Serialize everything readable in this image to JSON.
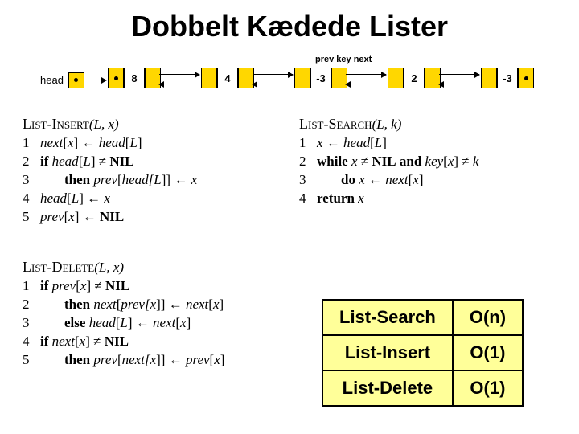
{
  "title": "Dobbelt Kædede Lister",
  "diagram": {
    "col_labels": "prev  key  next",
    "head_label": "head",
    "node_values": [
      "8",
      "4",
      "-3",
      "2",
      "-3"
    ],
    "node_bg": "#ffd700",
    "key_bg": "#ffffff"
  },
  "insert": {
    "title": "List-Insert",
    "args": "(L, x)",
    "lines": [
      {
        "n": "1",
        "txt": "next[x] ← head[L]"
      },
      {
        "n": "2",
        "txt": "if head[L] ≠ NIL"
      },
      {
        "n": "3",
        "txt": "then prev[head[L]] ← x",
        "indent": 1
      },
      {
        "n": "4",
        "txt": "head[L] ← x"
      },
      {
        "n": "5",
        "txt": "prev[x] ← NIL"
      }
    ]
  },
  "search": {
    "title": "List-Search",
    "args": "(L, k)",
    "lines": [
      {
        "n": "1",
        "txt": "x ← head[L]"
      },
      {
        "n": "2",
        "txt": "while x ≠ NIL and key[x] ≠ k"
      },
      {
        "n": "3",
        "txt": "do x ← next[x]",
        "indent": 1
      },
      {
        "n": "4",
        "txt": "return x"
      }
    ]
  },
  "delete": {
    "title": "List-Delete",
    "args": "(L, x)",
    "lines": [
      {
        "n": "1",
        "txt": "if prev[x] ≠ NIL"
      },
      {
        "n": "2",
        "txt": "then next[prev[x]] ← next[x]",
        "indent": 1
      },
      {
        "n": "3",
        "txt": "else head[L] ← next[x]",
        "indent": 1
      },
      {
        "n": "4",
        "txt": "if next[x] ≠ NIL"
      },
      {
        "n": "5",
        "txt": "then prev[next[x]] ← prev[x]",
        "indent": 1
      }
    ]
  },
  "complexity": {
    "rows": [
      [
        "List-Search",
        "O(n)"
      ],
      [
        "List-Insert",
        "O(1)"
      ],
      [
        "List-Delete",
        "O(1)"
      ]
    ],
    "bg": "#ffff99"
  }
}
